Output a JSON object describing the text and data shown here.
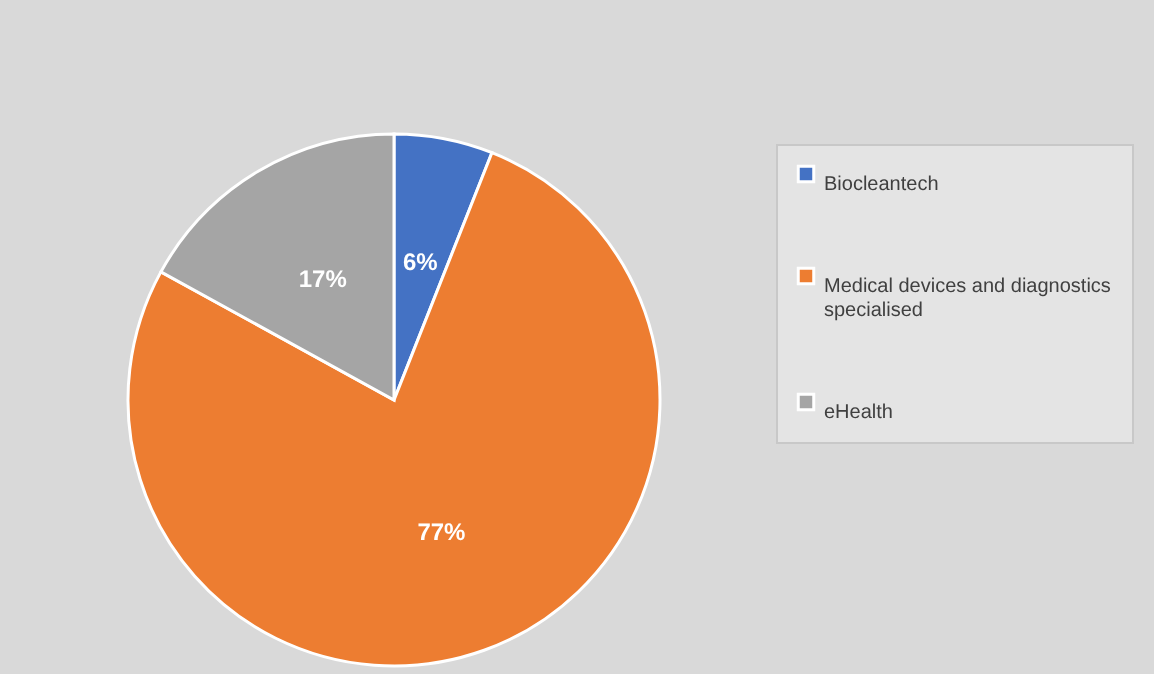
{
  "chart_data": {
    "type": "pie",
    "categories": [
      "Biocleantech",
      "Medical devices and diagnostics specialised",
      "eHealth"
    ],
    "values": [
      6,
      77,
      17
    ],
    "colors": [
      "#4472c4",
      "#ed7d31",
      "#a5a5a5"
    ],
    "value_labels": [
      "6%",
      "77%",
      "17%"
    ],
    "legend": "right"
  }
}
